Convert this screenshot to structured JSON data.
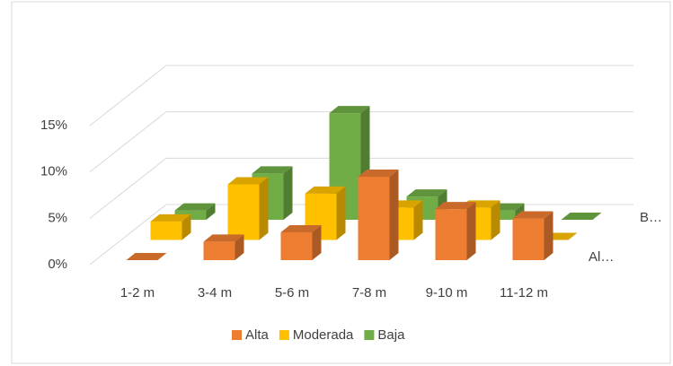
{
  "chart_data": {
    "type": "bar3d",
    "categories": [
      "1-2 m",
      "3-4 m",
      "5-6 m",
      "7-8 m",
      "9-10 m",
      "11-12 m"
    ],
    "series": [
      {
        "name": "Alta",
        "color": "#ed7d31",
        "values": [
          0,
          2,
          3,
          9,
          5.5,
          4.5
        ]
      },
      {
        "name": "Moderada",
        "color": "#ffc000",
        "values": [
          2,
          6,
          5,
          3.5,
          3.5,
          0
        ]
      },
      {
        "name": "Baja",
        "color": "#70ad47",
        "values": [
          1,
          5,
          11.5,
          2.5,
          1,
          0
        ]
      }
    ],
    "depth_labels": [
      "Al…",
      "B…"
    ],
    "ylim": [
      0,
      15
    ],
    "yticks": [
      {
        "value": 0,
        "label": "0%"
      },
      {
        "value": 5,
        "label": "5%"
      },
      {
        "value": 10,
        "label": "10%"
      },
      {
        "value": 15,
        "label": "15%"
      }
    ],
    "grid": true
  }
}
